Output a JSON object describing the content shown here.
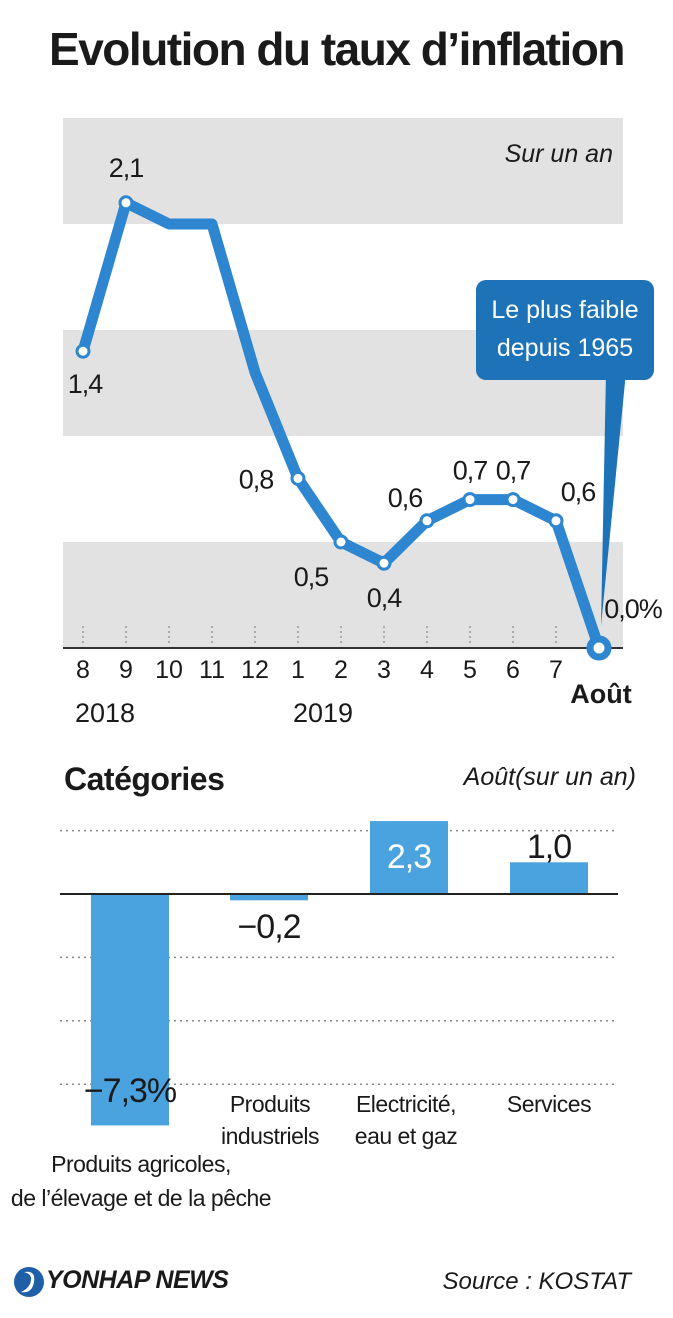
{
  "title": "Evolution du taux d’inflation",
  "chart_data": [
    {
      "type": "line",
      "subtitle": "Sur un an",
      "months": [
        "8",
        "9",
        "10",
        "11",
        "12",
        "1",
        "2",
        "3",
        "4",
        "5",
        "6",
        "7",
        "Août"
      ],
      "years": [
        "2018",
        "2019"
      ],
      "values": [
        1.4,
        2.1,
        2.0,
        2.0,
        1.3,
        0.8,
        0.5,
        0.4,
        0.6,
        0.7,
        0.7,
        0.6,
        0.0
      ],
      "labeled": [
        {
          "index": 0,
          "label": "1,4"
        },
        {
          "index": 1,
          "label": "2,1"
        },
        {
          "index": 5,
          "label": "0,8"
        },
        {
          "index": 6,
          "label": "0,5"
        },
        {
          "index": 7,
          "label": "0,4"
        },
        {
          "index": 8,
          "label": "0,6"
        },
        {
          "index": 9,
          "label": "0,7"
        },
        {
          "index": 10,
          "label": "0,7"
        },
        {
          "index": 11,
          "label": "0,6"
        },
        {
          "index": 12,
          "label": "0,0%"
        }
      ],
      "callout": [
        "Le plus faible",
        "depuis 1965"
      ],
      "ylim": [
        0,
        2.5
      ],
      "color": "#2e86d0"
    },
    {
      "type": "bar",
      "title": "Catégories",
      "subtitle": "Août(sur un an)",
      "categories": [
        [
          "Produits agricoles,",
          "de l’élevage et de la pêche"
        ],
        [
          "Produits",
          "industriels"
        ],
        [
          "Electricité,",
          "eau et gaz"
        ],
        [
          "Services"
        ]
      ],
      "values": [
        -7.3,
        -0.2,
        2.3,
        1.0
      ],
      "value_labels": [
        "−7,3%",
        "−0,2",
        "2,3",
        "1,0"
      ],
      "color": "#4aa3df"
    }
  ],
  "footer": {
    "logo": "YONHAP NEWS",
    "source": "Source : KOSTAT"
  },
  "colors": {
    "line": "#2e86d0",
    "bar": "#4aa3df",
    "band": "#e2e2e2",
    "callout": "#1d72b8"
  }
}
